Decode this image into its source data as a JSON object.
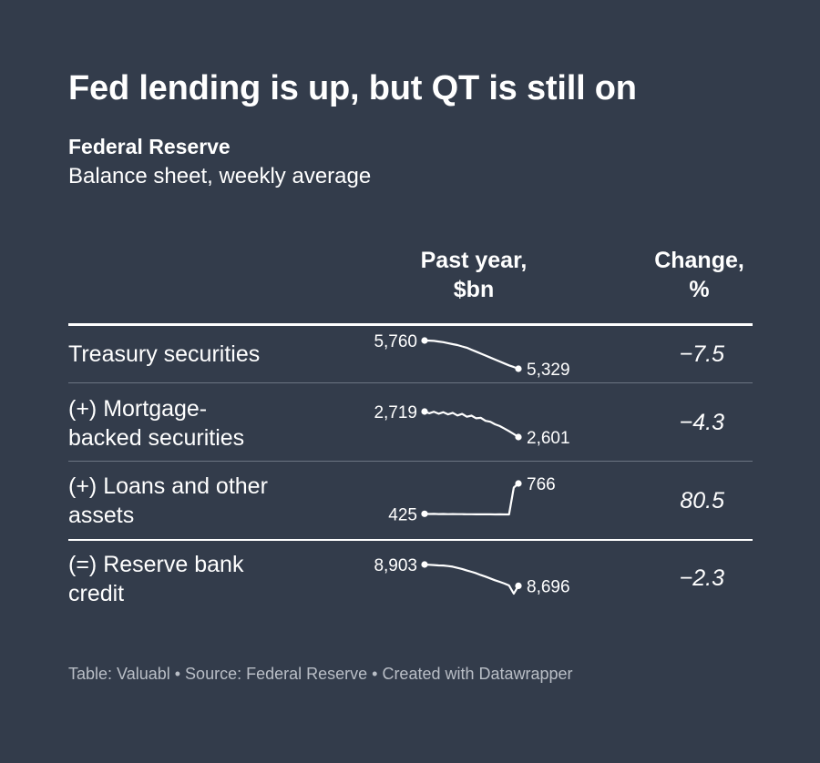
{
  "title": "Fed lending is up, but QT is still on",
  "subtitle_bold": "Federal Reserve",
  "subtitle": "Balance sheet, weekly average",
  "columns": {
    "spark_line1": "Past year,",
    "spark_line2": "$bn",
    "change_line1": "Change,",
    "change_line2": "%"
  },
  "rows": [
    {
      "label_line1": "Treasury securities",
      "label_line2": "",
      "change": "−7.5",
      "start_label": "5,760",
      "end_label": "5,329"
    },
    {
      "label_line1": "(+) Mortgage-",
      "label_line2": "backed securities",
      "change": "−4.3",
      "start_label": "2,719",
      "end_label": "2,601"
    },
    {
      "label_line1": "(+) Loans and other",
      "label_line2": "assets",
      "change": "80.5",
      "start_label": "425",
      "end_label": "766"
    },
    {
      "label_line1": "(=) Reserve bank",
      "label_line2": "credit",
      "change": "−2.3",
      "start_label": "8,903",
      "end_label": "8,696"
    }
  ],
  "footer": "Table: Valuabl • Source: Federal Reserve • Created with Datawrapper",
  "colors": {
    "background": "#333c4b",
    "text": "#ffffff",
    "footer": "#b9bec6",
    "divider": "#6b7482"
  },
  "chart_data": {
    "type": "table",
    "columns": [
      "",
      "Past year, $bn",
      "Change, %"
    ],
    "rows": [
      {
        "name": "Treasury securities",
        "start": 5760,
        "end": 5329,
        "change_pct": -7.5,
        "series": [
          5760,
          5758,
          5755,
          5745,
          5735,
          5720,
          5705,
          5690,
          5670,
          5650,
          5620,
          5590,
          5560,
          5530,
          5500,
          5470,
          5440,
          5410,
          5380,
          5355,
          5329
        ]
      },
      {
        "name": "(+) Mortgage-backed securities",
        "start": 2719,
        "end": 2601,
        "change_pct": -4.3,
        "series": [
          2719,
          2711,
          2718,
          2709,
          2716,
          2706,
          2713,
          2701,
          2708,
          2695,
          2700,
          2688,
          2690,
          2676,
          2672,
          2660,
          2652,
          2640,
          2628,
          2615,
          2601
        ]
      },
      {
        "name": "(+) Loans and other assets",
        "start": 425,
        "end": 766,
        "change_pct": 80.5,
        "series": [
          425,
          423,
          424,
          422,
          423,
          421,
          422,
          421,
          421,
          420,
          420,
          419,
          420,
          419,
          419,
          418,
          419,
          418,
          418,
          720,
          766
        ]
      },
      {
        "name": "(=) Reserve bank credit",
        "start": 8903,
        "end": 8696,
        "change_pct": -2.3,
        "series": [
          8903,
          8900,
          8898,
          8894,
          8893,
          8888,
          8882,
          8870,
          8860,
          8845,
          8832,
          8818,
          8800,
          8785,
          8768,
          8750,
          8735,
          8718,
          8700,
          8620,
          8696
        ]
      }
    ]
  }
}
